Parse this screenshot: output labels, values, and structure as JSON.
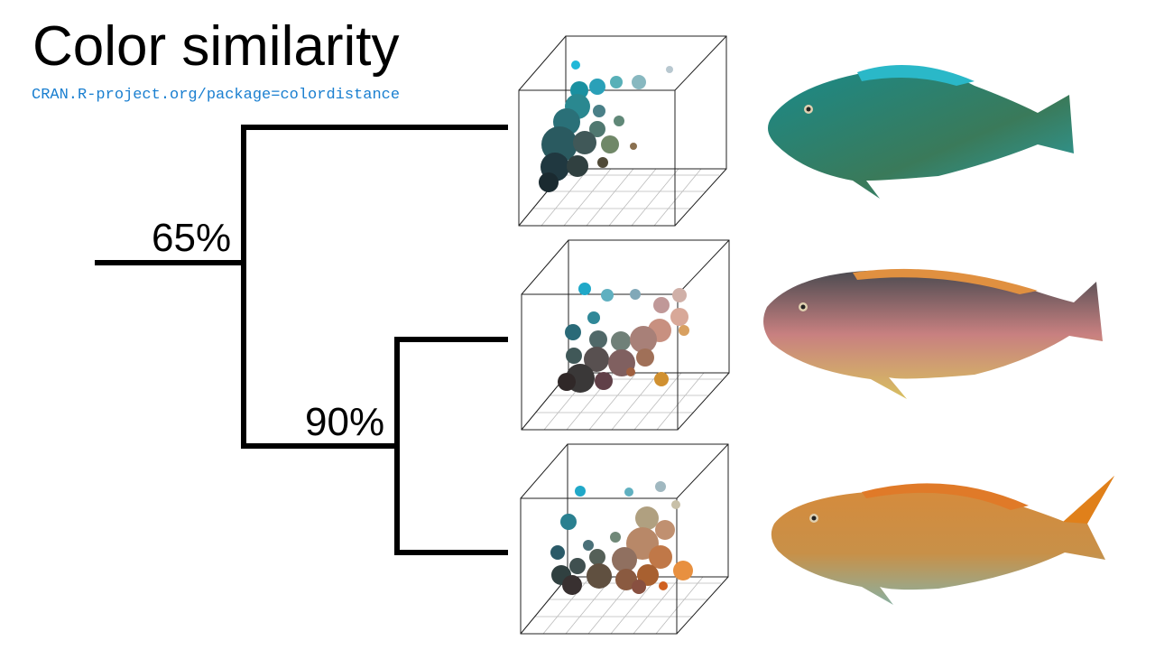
{
  "header": {
    "title": "Color similarity",
    "link": "CRAN.R-project.org/package=colordistance"
  },
  "dendrogram": {
    "labels": [
      "65%",
      "90%"
    ]
  }
}
